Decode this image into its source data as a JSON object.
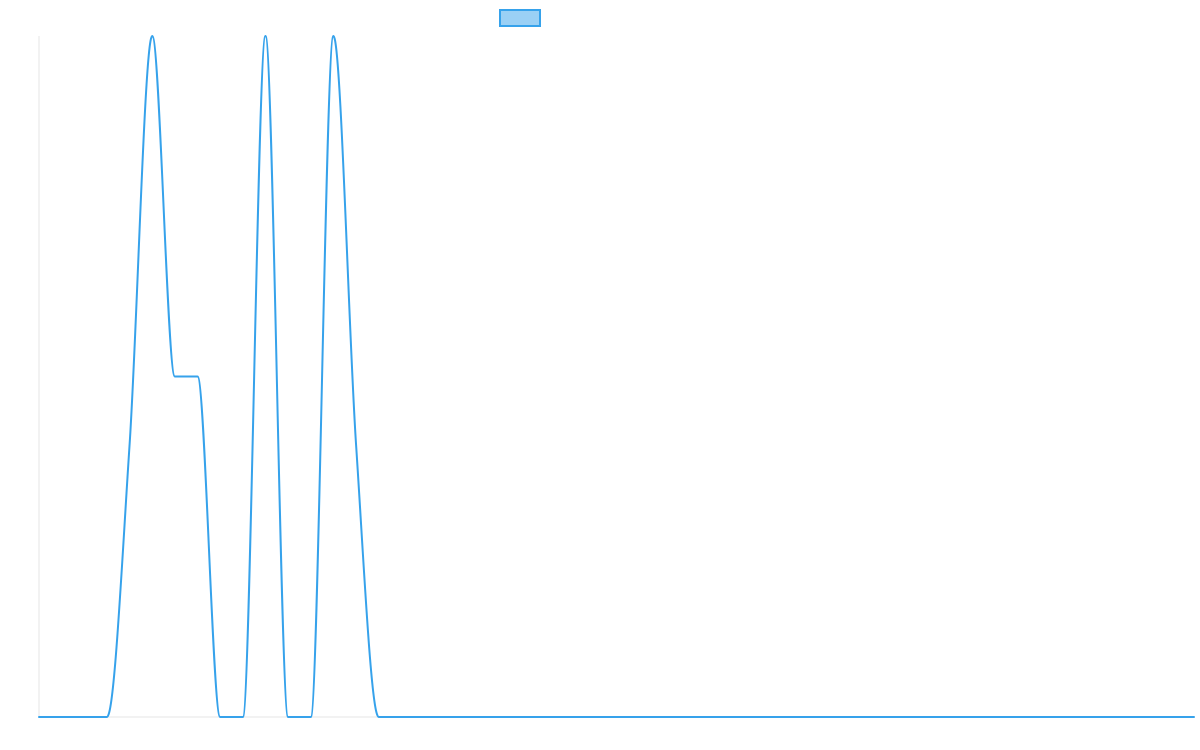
{
  "chart_data": {
    "type": "line",
    "title": "",
    "xlabel": "",
    "ylabel": "",
    "legend": {
      "position": "top-center",
      "entries": [
        {
          "label": "",
          "color": "#36A2EB",
          "fill": "#9AD0F5"
        }
      ]
    },
    "grid": false,
    "smooth": true,
    "x": [
      0,
      1,
      2,
      3,
      4,
      5,
      6,
      7,
      8,
      9,
      10,
      11,
      12,
      13,
      14,
      15,
      16,
      17,
      18,
      19,
      20,
      21,
      22,
      23,
      24,
      25,
      26,
      27,
      28,
      29,
      30,
      31,
      32,
      33,
      34,
      35,
      36,
      37,
      38,
      39,
      40,
      41,
      42,
      43,
      44,
      45,
      46,
      47,
      48,
      49,
      50,
      51
    ],
    "xlim": [
      0,
      51
    ],
    "ylim": [
      0,
      100
    ],
    "series": [
      {
        "name": "",
        "color": "#36A2EB",
        "values": [
          0,
          0,
          0,
          0,
          40,
          100,
          50,
          50,
          0,
          0,
          100,
          0,
          0,
          100,
          40,
          0,
          0,
          0,
          0,
          0,
          0,
          0,
          0,
          0,
          0,
          0,
          0,
          0,
          0,
          0,
          0,
          0,
          0,
          0,
          0,
          0,
          0,
          0,
          0,
          0,
          0,
          0,
          0,
          0,
          0,
          0,
          0,
          0,
          0,
          0,
          0,
          0
        ]
      }
    ]
  }
}
